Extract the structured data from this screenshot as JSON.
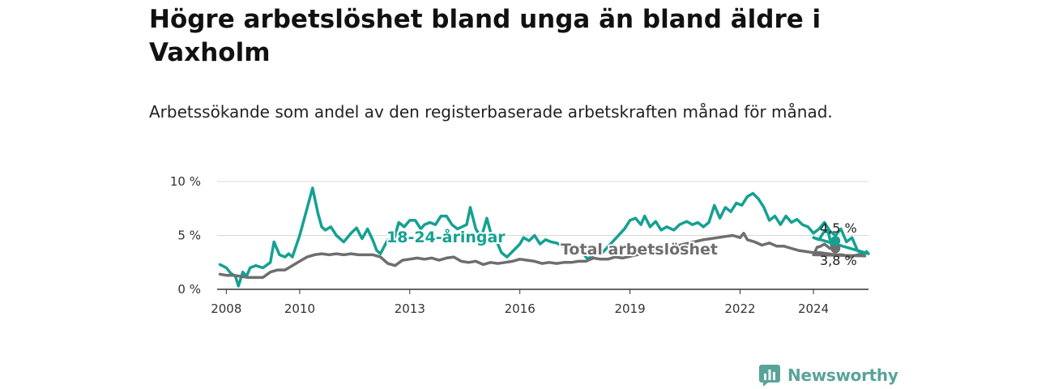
{
  "title": "Högre arbetslöshet bland unga än bland äldre i Vaxholm",
  "subtitle": "Arbetssökande som andel av den registerbaserade arbetskraften månad för månad.",
  "brand": {
    "name": "Newsworthy",
    "color": "#5aa39a",
    "icon": "bar-chart-icon"
  },
  "chart_data": {
    "type": "line",
    "xlim": [
      2007.75,
      2025.5
    ],
    "ylim": [
      0,
      10
    ],
    "y_ticks": [
      {
        "value": 0,
        "label": "0 %"
      },
      {
        "value": 5,
        "label": "5 %"
      },
      {
        "value": 10,
        "label": "10 %"
      }
    ],
    "x_ticks": [
      {
        "value": 2008,
        "label": "2008"
      },
      {
        "value": 2010,
        "label": "2010"
      },
      {
        "value": 2013,
        "label": "2013"
      },
      {
        "value": 2016,
        "label": "2016"
      },
      {
        "value": 2019,
        "label": "2019"
      },
      {
        "value": 2022,
        "label": "2022"
      },
      {
        "value": 2024,
        "label": "2024"
      }
    ],
    "grid": true,
    "series": [
      {
        "name": "18-24-åringar",
        "color": "#14a192",
        "end_label": "4,5 %",
        "points": [
          [
            2007.83,
            2.3
          ],
          [
            2008.0,
            2.0
          ],
          [
            2008.12,
            1.5
          ],
          [
            2008.25,
            1.2
          ],
          [
            2008.33,
            0.3
          ],
          [
            2008.45,
            1.6
          ],
          [
            2008.55,
            1.2
          ],
          [
            2008.65,
            2.0
          ],
          [
            2008.8,
            2.2
          ],
          [
            2009.0,
            2.0
          ],
          [
            2009.2,
            2.5
          ],
          [
            2009.3,
            4.4
          ],
          [
            2009.45,
            3.2
          ],
          [
            2009.6,
            3.0
          ],
          [
            2009.7,
            3.3
          ],
          [
            2009.8,
            3.0
          ],
          [
            2010.0,
            5.0
          ],
          [
            2010.2,
            7.5
          ],
          [
            2010.35,
            9.4
          ],
          [
            2010.5,
            7.0
          ],
          [
            2010.6,
            5.8
          ],
          [
            2010.7,
            5.5
          ],
          [
            2010.85,
            5.8
          ],
          [
            2011.0,
            5.0
          ],
          [
            2011.2,
            4.4
          ],
          [
            2011.4,
            5.2
          ],
          [
            2011.55,
            5.7
          ],
          [
            2011.7,
            4.7
          ],
          [
            2011.85,
            5.6
          ],
          [
            2012.0,
            4.5
          ],
          [
            2012.1,
            3.6
          ],
          [
            2012.2,
            3.3
          ],
          [
            2012.4,
            4.6
          ],
          [
            2012.55,
            4.4
          ],
          [
            2012.7,
            6.2
          ],
          [
            2012.85,
            5.8
          ],
          [
            2013.0,
            6.4
          ],
          [
            2013.15,
            6.4
          ],
          [
            2013.3,
            5.6
          ],
          [
            2013.4,
            6.0
          ],
          [
            2013.55,
            6.2
          ],
          [
            2013.7,
            6.0
          ],
          [
            2013.85,
            6.8
          ],
          [
            2014.0,
            6.8
          ],
          [
            2014.15,
            6.0
          ],
          [
            2014.3,
            5.6
          ],
          [
            2014.55,
            6.0
          ],
          [
            2014.65,
            7.6
          ],
          [
            2014.8,
            5.6
          ],
          [
            2014.95,
            4.8
          ],
          [
            2015.1,
            6.6
          ],
          [
            2015.2,
            5.3
          ],
          [
            2015.35,
            4.6
          ],
          [
            2015.5,
            3.4
          ],
          [
            2015.65,
            3.0
          ],
          [
            2015.8,
            3.5
          ],
          [
            2016.0,
            4.2
          ],
          [
            2016.1,
            4.8
          ],
          [
            2016.25,
            4.5
          ],
          [
            2016.4,
            5.0
          ],
          [
            2016.55,
            4.2
          ],
          [
            2016.7,
            4.6
          ],
          [
            2016.85,
            4.4
          ],
          [
            2017.0,
            4.3
          ],
          [
            2017.15,
            4.0
          ],
          [
            2017.3,
            4.0
          ],
          [
            2017.45,
            3.5
          ],
          [
            2017.6,
            3.6
          ],
          [
            2017.75,
            3.2
          ],
          [
            2017.85,
            2.8
          ],
          [
            2018.0,
            3.2
          ],
          [
            2018.1,
            3.6
          ],
          [
            2018.25,
            3.4
          ],
          [
            2018.85,
            5.6
          ],
          [
            2019.0,
            6.4
          ],
          [
            2019.15,
            6.6
          ],
          [
            2019.3,
            6.0
          ],
          [
            2019.4,
            6.8
          ],
          [
            2019.55,
            5.8
          ],
          [
            2019.7,
            6.3
          ],
          [
            2019.85,
            5.5
          ],
          [
            2020.0,
            5.8
          ],
          [
            2020.2,
            5.5
          ],
          [
            2020.35,
            6.0
          ],
          [
            2020.55,
            6.3
          ],
          [
            2020.7,
            6.0
          ],
          [
            2020.85,
            6.2
          ],
          [
            2021.0,
            5.8
          ],
          [
            2021.15,
            6.2
          ],
          [
            2021.3,
            7.8
          ],
          [
            2021.45,
            6.6
          ],
          [
            2021.6,
            7.6
          ],
          [
            2021.75,
            7.2
          ],
          [
            2021.9,
            8.0
          ],
          [
            2022.05,
            7.8
          ],
          [
            2022.2,
            8.6
          ],
          [
            2022.35,
            8.9
          ],
          [
            2022.5,
            8.4
          ],
          [
            2022.65,
            7.6
          ],
          [
            2022.8,
            6.4
          ],
          [
            2022.95,
            6.8
          ],
          [
            2023.1,
            6.0
          ],
          [
            2023.25,
            6.8
          ],
          [
            2023.4,
            6.2
          ],
          [
            2023.55,
            6.5
          ],
          [
            2023.7,
            6.0
          ],
          [
            2023.85,
            5.8
          ],
          [
            2024.0,
            5.2
          ],
          [
            2024.15,
            5.6
          ],
          [
            2024.3,
            6.2
          ],
          [
            2024.45,
            5.4
          ],
          [
            2024.6,
            5.0
          ],
          [
            2024.75,
            5.6
          ],
          [
            2024.9,
            4.4
          ],
          [
            2025.05,
            4.8
          ],
          [
            2025.2,
            3.6
          ],
          [
            2025.35,
            3.2
          ],
          [
            2025.45,
            3.5
          ],
          [
            2025.5,
            3.3
          ],
          [
            2024.0,
            4.8
          ],
          [
            2024.15,
            4.6
          ],
          [
            2024.3,
            5.4
          ],
          [
            2024.4,
            5.3
          ],
          [
            2024.5,
            4.0
          ],
          [
            2024.6,
            4.5
          ]
        ]
      },
      {
        "name": "Total arbetslöshet",
        "color": "#6e6e6e",
        "end_label": "3,8 %",
        "points": [
          [
            2007.83,
            1.4
          ],
          [
            2008.0,
            1.3
          ],
          [
            2008.2,
            1.3
          ],
          [
            2008.4,
            1.2
          ],
          [
            2008.6,
            1.1
          ],
          [
            2008.8,
            1.1
          ],
          [
            2009.0,
            1.1
          ],
          [
            2009.2,
            1.6
          ],
          [
            2009.4,
            1.8
          ],
          [
            2009.6,
            1.8
          ],
          [
            2009.8,
            2.2
          ],
          [
            2010.0,
            2.6
          ],
          [
            2010.2,
            3.0
          ],
          [
            2010.4,
            3.2
          ],
          [
            2010.6,
            3.3
          ],
          [
            2010.8,
            3.2
          ],
          [
            2011.0,
            3.3
          ],
          [
            2011.2,
            3.2
          ],
          [
            2011.4,
            3.3
          ],
          [
            2011.6,
            3.2
          ],
          [
            2011.8,
            3.2
          ],
          [
            2012.0,
            3.2
          ],
          [
            2012.2,
            3.0
          ],
          [
            2012.4,
            2.4
          ],
          [
            2012.6,
            2.2
          ],
          [
            2012.8,
            2.7
          ],
          [
            2013.0,
            2.8
          ],
          [
            2013.2,
            2.9
          ],
          [
            2013.4,
            2.8
          ],
          [
            2013.6,
            2.9
          ],
          [
            2013.8,
            2.7
          ],
          [
            2014.0,
            2.9
          ],
          [
            2014.2,
            3.0
          ],
          [
            2014.4,
            2.6
          ],
          [
            2014.6,
            2.5
          ],
          [
            2014.8,
            2.6
          ],
          [
            2015.0,
            2.3
          ],
          [
            2015.2,
            2.5
          ],
          [
            2015.4,
            2.4
          ],
          [
            2015.6,
            2.5
          ],
          [
            2015.8,
            2.6
          ],
          [
            2016.0,
            2.8
          ],
          [
            2016.2,
            2.7
          ],
          [
            2016.4,
            2.6
          ],
          [
            2016.6,
            2.4
          ],
          [
            2016.8,
            2.5
          ],
          [
            2017.0,
            2.4
          ],
          [
            2017.2,
            2.5
          ],
          [
            2017.4,
            2.5
          ],
          [
            2017.6,
            2.6
          ],
          [
            2017.8,
            2.6
          ],
          [
            2018.0,
            2.9
          ],
          [
            2018.2,
            2.8
          ],
          [
            2018.4,
            2.8
          ],
          [
            2018.6,
            3.0
          ],
          [
            2018.8,
            2.9
          ],
          [
            2021.0,
            4.6
          ],
          [
            2021.2,
            4.7
          ],
          [
            2021.4,
            4.8
          ],
          [
            2021.6,
            4.9
          ],
          [
            2021.8,
            5.0
          ],
          [
            2022.0,
            4.8
          ],
          [
            2022.1,
            5.2
          ],
          [
            2022.2,
            4.6
          ],
          [
            2022.4,
            4.4
          ],
          [
            2022.6,
            4.1
          ],
          [
            2022.8,
            4.3
          ],
          [
            2023.0,
            4.0
          ],
          [
            2023.2,
            4.0
          ],
          [
            2023.4,
            3.8
          ],
          [
            2023.6,
            3.6
          ],
          [
            2023.8,
            3.5
          ],
          [
            2024.0,
            3.4
          ],
          [
            2024.2,
            3.4
          ],
          [
            2024.4,
            3.3
          ],
          [
            2024.6,
            3.2
          ],
          [
            2024.8,
            3.2
          ],
          [
            2025.0,
            3.0
          ],
          [
            2025.2,
            3.2
          ],
          [
            2025.4,
            3.1
          ],
          [
            2024.0,
            3.2
          ],
          [
            2024.1,
            3.9
          ],
          [
            2024.2,
            4.0
          ],
          [
            2024.3,
            4.2
          ],
          [
            2024.45,
            3.8
          ],
          [
            2024.6,
            3.8
          ]
        ]
      }
    ]
  }
}
